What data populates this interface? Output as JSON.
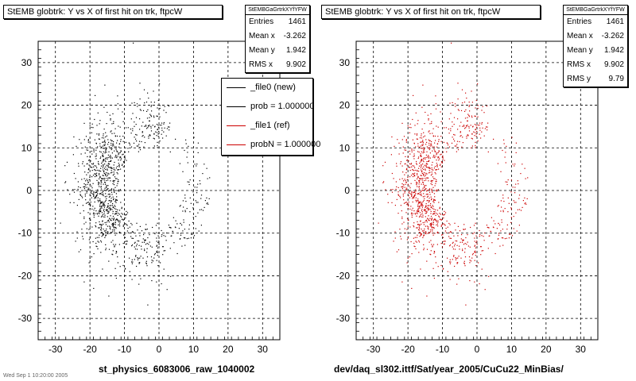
{
  "colors": {
    "black": "#000000",
    "red": "#cc0000",
    "grid": "#000000"
  },
  "chart_data": [
    {
      "type": "scatter",
      "title": "StEMB globtrk: Y vs X of first hit on trk, ftpcW",
      "xlim": [
        -35,
        35
      ],
      "ylim": [
        -35,
        35
      ],
      "xticks": [
        -30,
        -20,
        -10,
        0,
        10,
        20,
        30
      ],
      "yticks": [
        -30,
        -20,
        -10,
        0,
        10,
        20,
        30
      ],
      "grid": true,
      "marker_color": "#000000",
      "stats": {
        "header": "StEMBGaGrtrkXYfYFW",
        "entries_label": "Entries",
        "entries": "1461",
        "mean_x_label": "Mean x",
        "mean_x": "-3.262",
        "mean_y_label": "Mean y",
        "mean_y": "1.942",
        "rms_x_label": "RMS x",
        "rms_x": "9.902"
      },
      "legend": {
        "placement": "top-right",
        "entries": [
          {
            "label": "_file0 (new)",
            "color": "#000000"
          },
          {
            "label": "prob = 1.000000",
            "color": "#000000"
          },
          {
            "label": "_file1 (ref)",
            "color": "#cc0000"
          },
          {
            "label": "probN = 1.000000",
            "color": "#cc0000"
          }
        ]
      },
      "footer": "st_physics_6083006_raw_1040002",
      "distribution": {
        "x_center": -3.262,
        "y_center": 1.942,
        "inner_radius": 8,
        "outer_radius": 21,
        "points": 1461
      }
    },
    {
      "type": "scatter",
      "title": "StEMB globtrk: Y vs X of first hit on trk, ftpcW",
      "xlim": [
        -35,
        35
      ],
      "ylim": [
        -35,
        35
      ],
      "xticks": [
        -30,
        -20,
        -10,
        0,
        10,
        20,
        30
      ],
      "yticks": [
        -30,
        -20,
        -10,
        0,
        10,
        20,
        30
      ],
      "grid": true,
      "marker_color": "#cc0000",
      "stats": {
        "header": "StEMBGaGrtrkXYfYFW",
        "entries_label": "Entries",
        "entries": "1461",
        "mean_x_label": "Mean x",
        "mean_x": "-3.262",
        "mean_y_label": "Mean y",
        "mean_y": "1.942",
        "rms_x_label": "RMS x",
        "rms_x": "9.902",
        "rms_y_label": "RMS y",
        "rms_y": "9.79"
      },
      "footer": "dev/daq_sl302.ittf/Sat/year_2005/CuCu22_MinBias/",
      "distribution": {
        "x_center": -3.262,
        "y_center": 1.942,
        "inner_radius": 8,
        "outer_radius": 21,
        "points": 1461
      }
    }
  ],
  "corner_note": "Wed Sep 1 10:20:00 2005"
}
